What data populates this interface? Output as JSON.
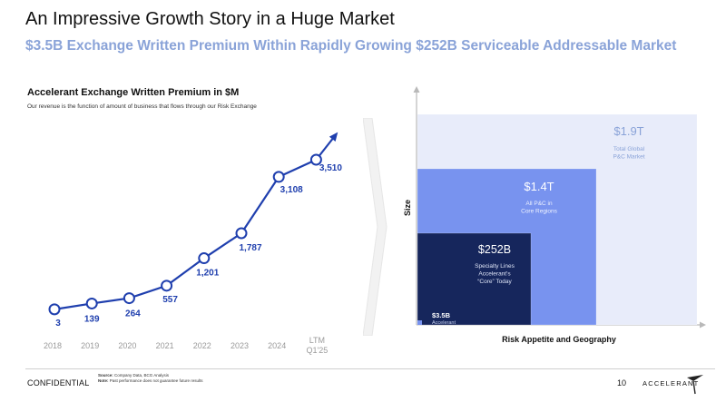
{
  "header": {
    "title": "An Impressive Growth Story in a Huge Market",
    "subtitle": "$3.5B Exchange Written Premium Within Rapidly Growing $252B Serviceable Addressable Market"
  },
  "chart_data": [
    {
      "type": "line",
      "title": "Accelerant Exchange Written Premium in $M",
      "subtitle": "Our revenue is the function of amount of business that flows through our Risk Exchange",
      "categories": [
        "2018",
        "2019",
        "2020",
        "2021",
        "2022",
        "2023",
        "2024",
        "LTM Q1'25"
      ],
      "category_lines": [
        [
          "2018"
        ],
        [
          "2019"
        ],
        [
          "2020"
        ],
        [
          "2021"
        ],
        [
          "2022"
        ],
        [
          "2023"
        ],
        [
          "2024"
        ],
        [
          "LTM",
          "Q1'25"
        ]
      ],
      "values": [
        3,
        139,
        264,
        557,
        1201,
        1787,
        3108,
        3510
      ],
      "data_labels": [
        "3",
        "139",
        "264",
        "557",
        "1,201",
        "1,787",
        "3,108",
        "3,510"
      ],
      "ylim": [
        0,
        3510
      ],
      "line_color": "#1f3fae",
      "label_color": "#1f3fae",
      "grid": false,
      "end_arrow": true
    },
    {
      "type": "nested-area",
      "xlabel": "Risk Appetite and Geography",
      "ylabel": "Size",
      "series": [
        {
          "value_label": "$1.9T",
          "description": [
            "Total Global",
            "P&C Market"
          ],
          "color": "#e8ecfa",
          "value_color": "#8aa3d8",
          "text_color": "#8aa3d8"
        },
        {
          "value_label": "$1.4T",
          "description": [
            "All P&C in",
            "Core Regions"
          ],
          "color": "#7893ef",
          "value_color": "#ffffff",
          "text_color": "#eef2ff"
        },
        {
          "value_label": "$252B",
          "description": [
            "Specialty Lines",
            "Accelerant's",
            "“Core” Today"
          ],
          "color": "#16265c",
          "value_color": "#ffffff",
          "text_color": "#dfe5f7"
        },
        {
          "value_label": "$3.5B",
          "description": [
            "Accelerant"
          ],
          "color": "#7893ef",
          "value_color": "#ffffff",
          "text_color": "#c9d3f1"
        }
      ]
    }
  ],
  "footer": {
    "confidential": "CONFIDENTIAL",
    "source_label": "Source:",
    "source_text": " Company Data, BCG Analysis",
    "note_label": "Note:",
    "note_text": " Past performance does not guarantee future results",
    "page_number": "10",
    "logo_text": "ACCELERANT"
  }
}
